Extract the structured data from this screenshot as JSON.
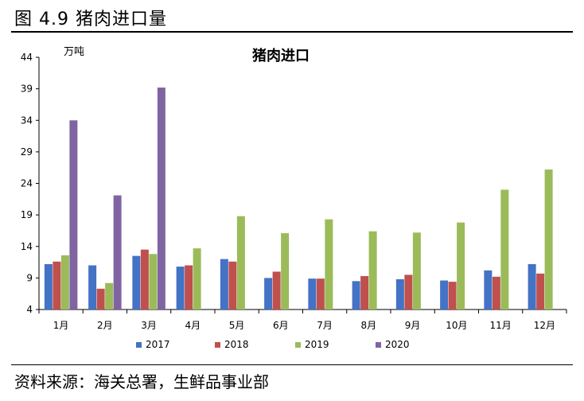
{
  "figure": {
    "label": "图 4.9 猪肉进口量",
    "source": "资料来源：海关总署，生鲜品事业部"
  },
  "chart_data": {
    "type": "bar",
    "title": "猪肉进口",
    "unit": "万吨",
    "xlabel": "",
    "ylabel": "",
    "ylim": [
      4,
      44
    ],
    "yticks": [
      4,
      9,
      14,
      19,
      24,
      29,
      34,
      39,
      44
    ],
    "grid": false,
    "legend_position": "bottom",
    "categories": [
      "1月",
      "2月",
      "3月",
      "4月",
      "5月",
      "6月",
      "7月",
      "8月",
      "9月",
      "10月",
      "11月",
      "12月"
    ],
    "series": [
      {
        "name": "2017",
        "color": "#4472c4",
        "values": [
          11.2,
          11.0,
          12.5,
          10.8,
          12.0,
          9.0,
          8.9,
          8.5,
          8.8,
          8.6,
          10.2,
          11.2
        ]
      },
      {
        "name": "2018",
        "color": "#c0504d",
        "values": [
          11.6,
          7.3,
          13.5,
          11.0,
          11.6,
          10.0,
          8.9,
          9.3,
          9.5,
          8.4,
          9.2,
          9.7
        ]
      },
      {
        "name": "2019",
        "color": "#9bbb59",
        "values": [
          12.6,
          8.2,
          12.8,
          13.7,
          18.8,
          16.1,
          18.3,
          16.4,
          16.2,
          17.8,
          23.0,
          26.2
        ]
      },
      {
        "name": "2020",
        "color": "#8064a2",
        "values": [
          34.0,
          22.1,
          39.2,
          null,
          null,
          null,
          null,
          null,
          null,
          null,
          null,
          null
        ]
      }
    ]
  }
}
